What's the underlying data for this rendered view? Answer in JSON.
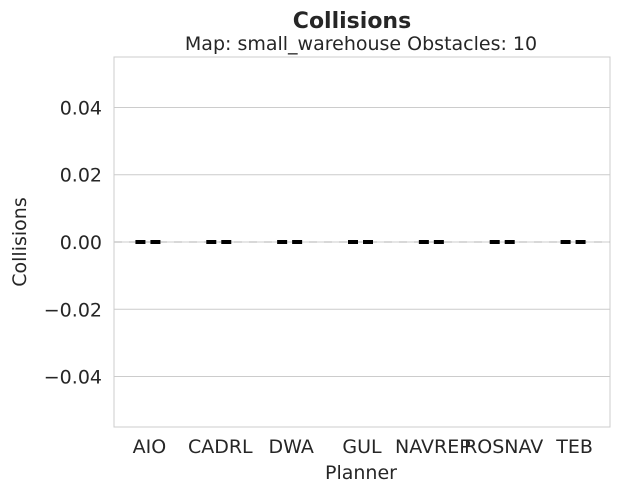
{
  "chart_data": {
    "type": "box",
    "title": "Collisions",
    "subtitle": "Map: small_warehouse Obstacles: 10",
    "xlabel": "Planner",
    "ylabel": "Collisions",
    "categories": [
      "AIO",
      "CADRL",
      "DWA",
      "GUL",
      "NAVREP",
      "ROSNAV",
      "TEB"
    ],
    "values": [
      0,
      0,
      0,
      0,
      0,
      0,
      0
    ],
    "ylim": [
      -0.055,
      0.055
    ],
    "yticks": [
      -0.04,
      -0.02,
      0.0,
      0.02,
      0.04
    ],
    "ytick_labels": [
      "−0.04",
      "−0.02",
      "0.00",
      "0.02",
      "0.04"
    ],
    "grid": true,
    "reference_line": {
      "y": 0,
      "style": "dashed",
      "color": "#cccccc"
    },
    "median_color": "#000000",
    "grid_color": "#cccccc",
    "axis_color": "#cccccc"
  }
}
